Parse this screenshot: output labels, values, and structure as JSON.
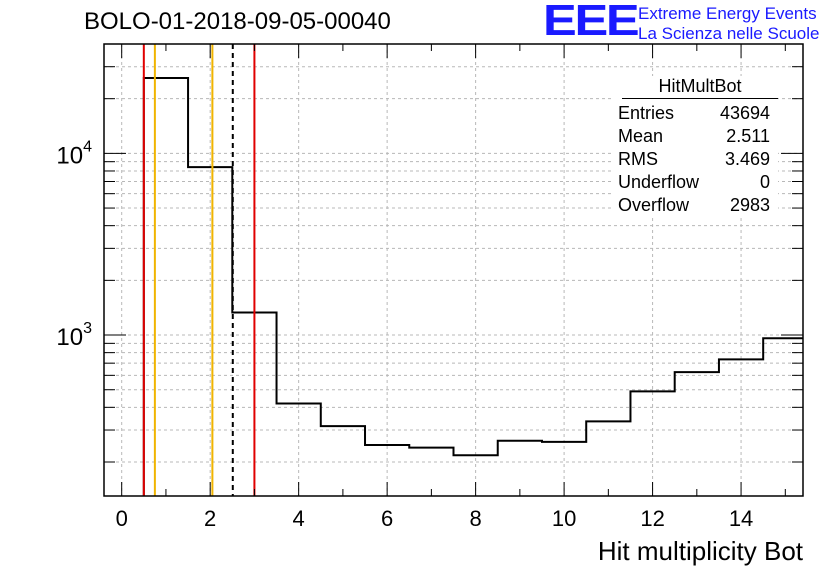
{
  "title": "BOLO-01-2018-09-05-00040",
  "logo": {
    "mark": "EEE",
    "line1": "Extreme Energy Events",
    "line2": "La Scienza nelle Scuole",
    "color": "#1a1aff"
  },
  "stats": {
    "name": "HitMultBot",
    "rows": [
      {
        "label": "Entries",
        "value": "43694"
      },
      {
        "label": "Mean",
        "value": "2.511"
      },
      {
        "label": "RMS",
        "value": "3.469"
      },
      {
        "label": "Underflow",
        "value": "0"
      },
      {
        "label": "Overflow",
        "value": "2983"
      }
    ]
  },
  "chart_data": {
    "type": "histogram",
    "xlabel": "Hit multiplicity Bot",
    "ylabel": "",
    "xlim": [
      -0.4,
      15.4
    ],
    "ylim": [
      130,
      40000
    ],
    "yscale": "log",
    "grid": true,
    "x_ticks": [
      0,
      2,
      4,
      6,
      8,
      10,
      12,
      14
    ],
    "y_ticks": [
      {
        "value": 1000,
        "base": "10",
        "exp": "3"
      },
      {
        "value": 10000,
        "base": "10",
        "exp": "4"
      }
    ],
    "bin_edges": [
      0.5,
      1.5,
      2.5,
      3.5,
      4.5,
      5.5,
      6.5,
      7.5,
      8.5,
      9.5,
      10.5,
      11.5,
      12.5,
      13.5,
      14.5,
      15.5
    ],
    "counts": [
      26000,
      8400,
      1330,
      420,
      315,
      248,
      240,
      218,
      262,
      258,
      335,
      490,
      625,
      735,
      960
    ],
    "line_color": "#000000",
    "markers": [
      {
        "x": 0.5,
        "color": "#e00000",
        "style": "solid",
        "from": 26000
      },
      {
        "x": 0.75,
        "color": "#f0b400",
        "style": "solid"
      },
      {
        "x": 2.05,
        "color": "#f0b400",
        "style": "solid"
      },
      {
        "x": 2.511,
        "color": "#000000",
        "style": "dashed"
      },
      {
        "x": 3.0,
        "color": "#e00000",
        "style": "solid"
      }
    ]
  }
}
